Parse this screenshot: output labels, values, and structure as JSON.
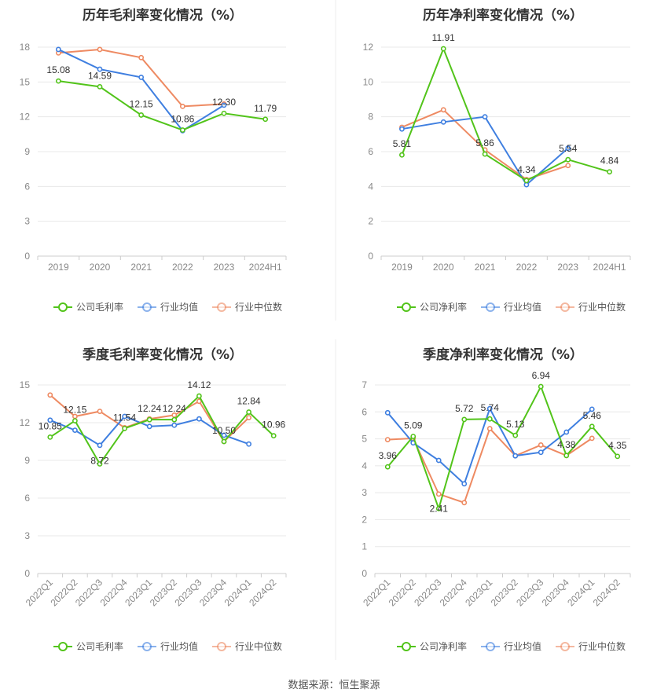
{
  "colors": {
    "company": "#52c41a",
    "avg": "#3f7fe0",
    "median": "#ee8a62",
    "grid": "#e8e8e8",
    "axis": "#cccccc",
    "divider": "#eeeeee"
  },
  "source": "数据来源：恒生聚源",
  "chart_data": [
    {
      "type": "line",
      "title": "历年毛利率变化情况（%）",
      "categories": [
        "2019",
        "2020",
        "2021",
        "2022",
        "2023",
        "2024H1"
      ],
      "ylim": [
        0,
        18
      ],
      "yticks": [
        0,
        3,
        6,
        9,
        12,
        15,
        18
      ],
      "series": [
        {
          "name": "公司毛利率",
          "values": [
            15.08,
            14.59,
            12.15,
            10.86,
            12.3,
            11.79
          ]
        },
        {
          "name": "行业均值",
          "values": [
            17.8,
            16.1,
            15.4,
            10.8,
            13.0,
            null
          ]
        },
        {
          "name": "行业中位数",
          "values": [
            17.5,
            17.8,
            17.1,
            12.9,
            13.1,
            null
          ]
        }
      ],
      "data_labels": [
        "15.08",
        "14.59",
        "12.15",
        "10.86",
        "12.30",
        "11.79"
      ]
    },
    {
      "type": "line",
      "title": "历年净利率变化情况（%）",
      "categories": [
        "2019",
        "2020",
        "2021",
        "2022",
        "2023",
        "2024H1"
      ],
      "ylim": [
        0,
        12
      ],
      "yticks": [
        0,
        2,
        4,
        6,
        8,
        10,
        12
      ],
      "series": [
        {
          "name": "公司净利率",
          "values": [
            5.81,
            11.91,
            5.86,
            4.34,
            5.54,
            4.84
          ]
        },
        {
          "name": "行业均值",
          "values": [
            7.3,
            7.7,
            8.0,
            4.1,
            6.2,
            null
          ]
        },
        {
          "name": "行业中位数",
          "values": [
            7.4,
            8.4,
            6.1,
            4.4,
            5.2,
            null
          ]
        }
      ],
      "data_labels": [
        "5.81",
        "11.91",
        "5.86",
        "4.34",
        "5.54",
        "4.84"
      ]
    },
    {
      "type": "line",
      "title": "季度毛利率变化情况（%）",
      "categories": [
        "2022Q1",
        "2022Q2",
        "2022Q3",
        "2022Q4",
        "2023Q1",
        "2023Q2",
        "2023Q3",
        "2023Q4",
        "2024Q1",
        "2024Q2"
      ],
      "ylim": [
        0,
        15
      ],
      "yticks": [
        0,
        3,
        6,
        9,
        12,
        15
      ],
      "series": [
        {
          "name": "公司毛利率",
          "values": [
            10.85,
            12.15,
            8.72,
            11.54,
            12.24,
            12.24,
            14.12,
            10.5,
            12.84,
            10.96
          ]
        },
        {
          "name": "行业均值",
          "values": [
            12.2,
            11.4,
            10.2,
            12.5,
            11.7,
            11.8,
            12.3,
            11.0,
            10.3,
            null
          ]
        },
        {
          "name": "行业中位数",
          "values": [
            14.2,
            12.5,
            12.9,
            11.6,
            12.3,
            12.6,
            13.7,
            10.5,
            12.4,
            null
          ]
        }
      ],
      "data_labels": [
        "10.85",
        "12.15",
        "8.72",
        "11.54",
        "12.24",
        "12.24",
        "14.12",
        "10.50",
        "12.84",
        "10.96"
      ]
    },
    {
      "type": "line",
      "title": "季度净利率变化情况（%）",
      "categories": [
        "2022Q1",
        "2022Q2",
        "2022Q3",
        "2022Q4",
        "2023Q1",
        "2023Q2",
        "2023Q3",
        "2023Q4",
        "2024Q1",
        "2024Q2"
      ],
      "ylim": [
        0,
        7
      ],
      "yticks": [
        0,
        1,
        2,
        3,
        4,
        5,
        6,
        7
      ],
      "series": [
        {
          "name": "公司净利率",
          "values": [
            3.96,
            5.09,
            2.41,
            5.72,
            5.74,
            5.13,
            6.94,
            4.38,
            5.46,
            4.35
          ]
        },
        {
          "name": "行业均值",
          "values": [
            5.97,
            4.85,
            4.2,
            3.33,
            6.12,
            4.37,
            4.5,
            5.25,
            6.1,
            null
          ]
        },
        {
          "name": "行业中位数",
          "values": [
            4.97,
            5.02,
            2.95,
            2.63,
            5.38,
            4.37,
            4.77,
            4.38,
            5.02,
            null
          ]
        }
      ],
      "data_labels": [
        "3.96",
        "5.09",
        "2.41",
        "5.72",
        "5.74",
        "5.13",
        "6.94",
        "4.38",
        "5.46",
        "4.35"
      ]
    }
  ]
}
